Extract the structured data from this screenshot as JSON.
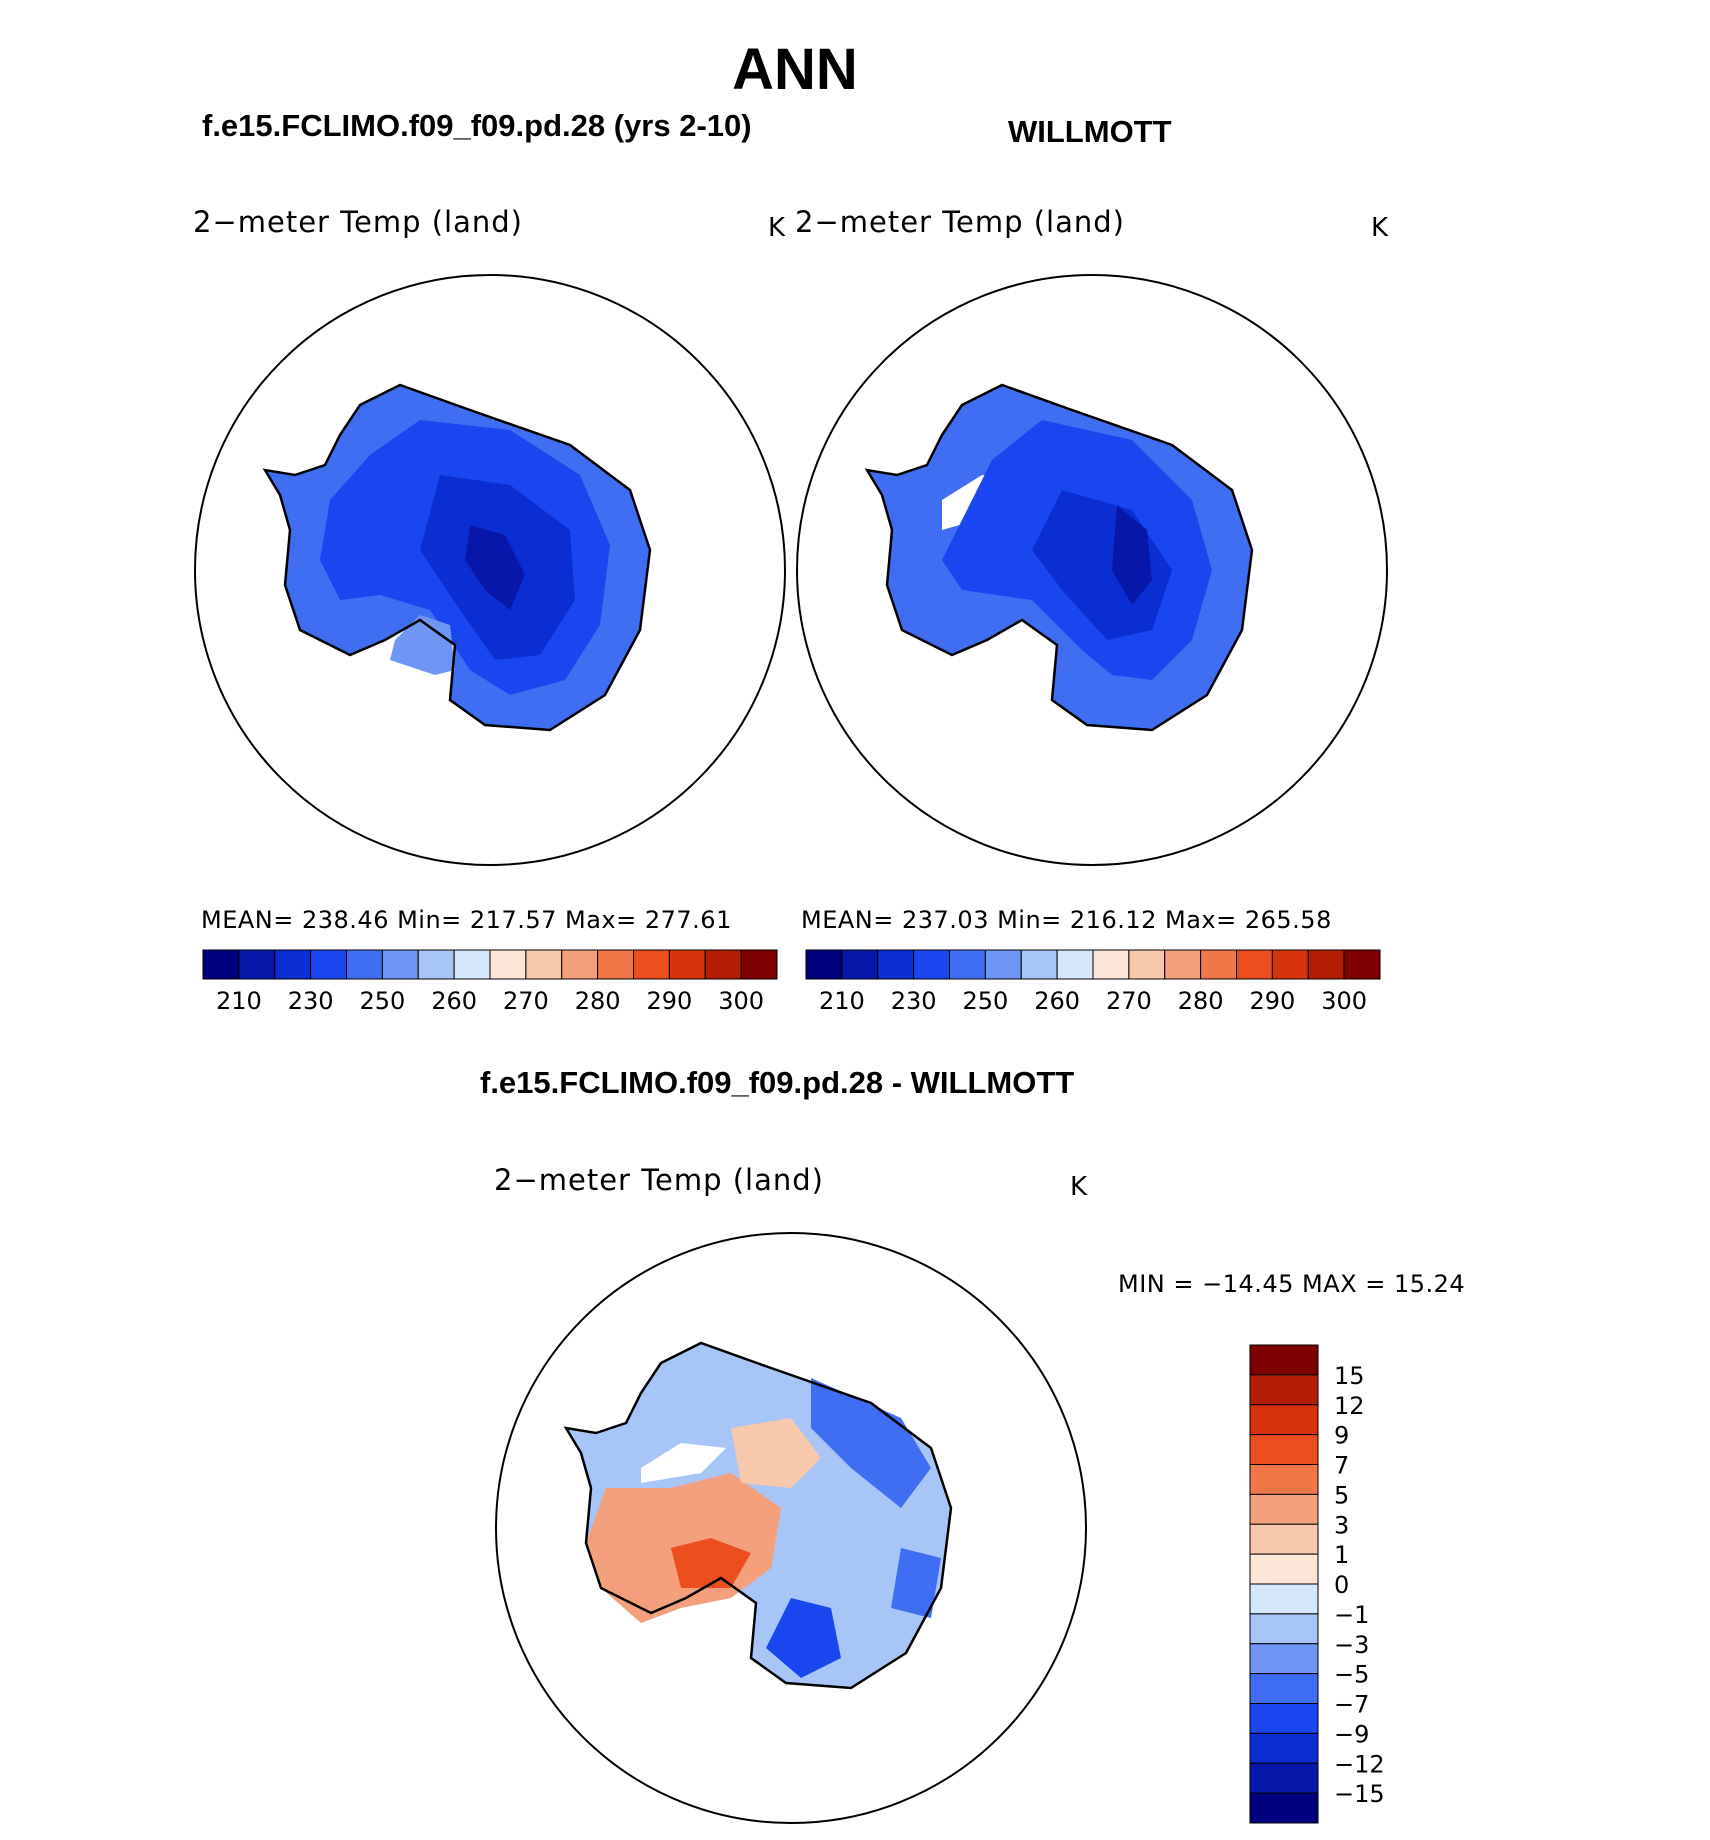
{
  "title": "ANN",
  "panels": {
    "left": {
      "case_title": "f.e15.FCLIMO.f09_f09.pd.28 (yrs 2-10)",
      "variable": "2−meter Temp (land)",
      "units": "K",
      "stats": "MEAN= 238.46   Min= 217.57   Max= 277.61"
    },
    "right": {
      "case_title": "WILLMOTT",
      "variable": "2−meter Temp (land)",
      "units": "K",
      "stats": "MEAN= 237.03   Min= 216.12   Max= 265.58"
    },
    "diff": {
      "case_title": "f.e15.FCLIMO.f09_f09.pd.28 - WILLMOTT",
      "variable": "2−meter Temp (land)",
      "units": "K",
      "stats": "MIN  =  −14.45  MAX  =    15.24"
    }
  },
  "abs_colorbar": {
    "labels": [
      "210",
      "230",
      "250",
      "260",
      "270",
      "280",
      "290",
      "300"
    ],
    "colors": [
      "#00007f",
      "#0717aa",
      "#0b2ed3",
      "#1a46ef",
      "#3f6ef3",
      "#6f96f5",
      "#a8c5f8",
      "#d5e7fb",
      "#fbe6d7",
      "#f8c8ad",
      "#f4a07c",
      "#f17749",
      "#ec4e1f",
      "#d8330b",
      "#b21d04",
      "#7e0000"
    ]
  },
  "diff_colorbar": {
    "labels": [
      "15",
      "12",
      "9",
      "7",
      "5",
      "3",
      "1",
      "0",
      "−1",
      "−3",
      "−5",
      "−7",
      "−9",
      "−12",
      "−15"
    ],
    "colors": [
      "#7e0000",
      "#b21d04",
      "#d8330b",
      "#ec4e1f",
      "#f17749",
      "#f4a07c",
      "#f8c8ad",
      "#fbe6d7",
      "#d5e7fb",
      "#a8c5f8",
      "#6f96f5",
      "#3f6ef3",
      "#1a46ef",
      "#0b2ed3",
      "#0717aa",
      "#00007f"
    ]
  }
}
